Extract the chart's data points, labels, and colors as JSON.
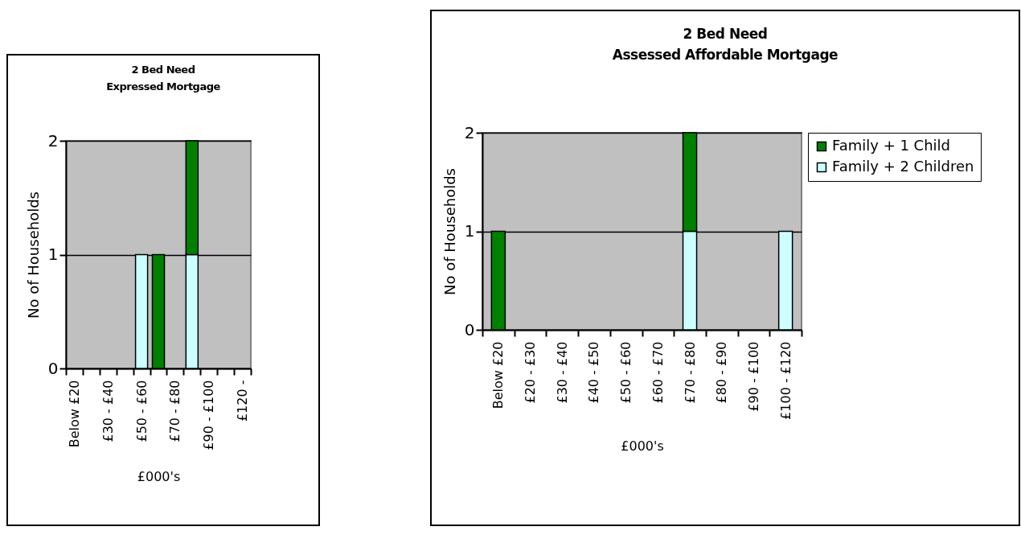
{
  "chart_data": [
    {
      "type": "bar",
      "title": "2 Bed Need\nExpressed Mortgage",
      "xlabel": "£000's",
      "ylabel": "No of Households",
      "stacked": true,
      "categories": [
        "Below £20",
        null,
        "£30 - £40",
        null,
        "£50 - £60",
        null,
        "£70 - £80",
        null,
        "£90 - £100",
        null,
        "£120 -"
      ],
      "series": [
        {
          "color": "#ccffff",
          "values": [
            0,
            0,
            0,
            0,
            1,
            0,
            0,
            1,
            0,
            0,
            0
          ]
        },
        {
          "color": "#008000",
          "values": [
            0,
            0,
            0,
            0,
            0,
            1,
            0,
            1,
            0,
            0,
            0
          ]
        }
      ],
      "ylim": [
        0,
        2
      ],
      "yticks": [
        0,
        1,
        2
      ],
      "grid": "y",
      "legend": false
    },
    {
      "type": "bar",
      "title": "2 Bed Need\nAssessed Affordable Mortgage",
      "xlabel": "£000's",
      "ylabel": "No of Households",
      "stacked": true,
      "categories": [
        "Below £20",
        "£20 - £30",
        "£30 - £40",
        "£40 - £50",
        "£50 - £60",
        "£60 - £70",
        "£70 - £80",
        "£80 - £90",
        "£90 - £100",
        "£100 - £120"
      ],
      "series": [
        {
          "name": "Family + 2 Children",
          "color": "#ccffff",
          "values": [
            0,
            0,
            0,
            0,
            0,
            0,
            1,
            0,
            0,
            1
          ]
        },
        {
          "name": "Family + 1 Child",
          "color": "#008000",
          "values": [
            1,
            0,
            0,
            0,
            0,
            0,
            1,
            0,
            0,
            0
          ]
        }
      ],
      "ylim": [
        0,
        2
      ],
      "yticks": [
        0,
        1,
        2
      ],
      "grid": "y",
      "legend": "right"
    }
  ]
}
